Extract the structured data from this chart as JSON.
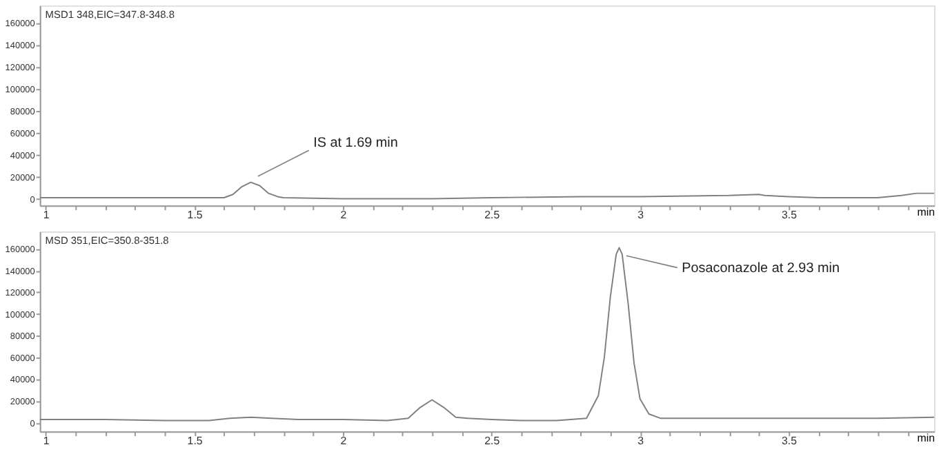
{
  "chart_data": [
    {
      "type": "line",
      "title": "MSD1 348,EIC=347.8-348.8",
      "xlabel": "min",
      "color": "#808080",
      "grid": false,
      "x": [
        0.98,
        1.2,
        1.4,
        1.55,
        1.6,
        1.63,
        1.66,
        1.69,
        1.72,
        1.75,
        1.78,
        1.8,
        2.0,
        2.3,
        2.5,
        2.8,
        3.0,
        3.3,
        3.4,
        3.42,
        3.5,
        3.6,
        3.8,
        3.88,
        3.93,
        3.99
      ],
      "values": [
        1000,
        1000,
        1000,
        1000,
        1000,
        4000,
        11000,
        15000,
        12000,
        5000,
        2000,
        1000,
        0,
        0,
        1000,
        2000,
        2000,
        3000,
        4000,
        3000,
        2000,
        1000,
        1000,
        3000,
        5000,
        5000
      ],
      "xlim": [
        0.98,
        3.99
      ],
      "ylim": [
        -6000,
        176000
      ],
      "xticks": [
        1,
        {
          "value": 1.1,
          "label": null
        },
        {
          "value": 1.2,
          "label": null
        },
        {
          "value": 1.3,
          "label": null
        },
        {
          "value": 1.4,
          "label": null
        },
        1.5,
        {
          "value": 1.6,
          "label": null
        },
        {
          "value": 1.7,
          "label": null
        },
        {
          "value": 1.8,
          "label": null
        },
        {
          "value": 1.9,
          "label": null
        },
        2,
        {
          "value": 2.1,
          "label": null
        },
        {
          "value": 2.2,
          "label": null
        },
        {
          "value": 2.3,
          "label": null
        },
        {
          "value": 2.4,
          "label": null
        },
        2.5,
        {
          "value": 2.6,
          "label": null
        },
        {
          "value": 2.7,
          "label": null
        },
        {
          "value": 2.8,
          "label": null
        },
        {
          "value": 2.9,
          "label": null
        },
        3,
        {
          "value": 3.1,
          "label": null
        },
        {
          "value": 3.2,
          "label": null
        },
        {
          "value": 3.3,
          "label": null
        },
        {
          "value": 3.4,
          "label": null
        },
        3.5,
        {
          "value": 3.6,
          "label": null
        },
        {
          "value": 3.7,
          "label": null
        },
        {
          "value": 3.8,
          "label": null
        },
        {
          "value": 3.9,
          "label": null
        }
      ],
      "yticks": [
        0,
        20000,
        40000,
        60000,
        80000,
        100000,
        120000,
        140000,
        160000
      ],
      "annotations": [
        {
          "text": "IS at 1.69 min",
          "x": 1.69,
          "y": 15000
        }
      ]
    },
    {
      "type": "line",
      "title": "MSD 351,EIC=350.8-351.8",
      "xlabel": "min",
      "color": "#808080",
      "grid": false,
      "x": [
        0.98,
        1.2,
        1.4,
        1.55,
        1.62,
        1.69,
        1.76,
        1.85,
        2.0,
        2.15,
        2.22,
        2.26,
        2.3,
        2.34,
        2.38,
        2.42,
        2.5,
        2.6,
        2.72,
        2.82,
        2.86,
        2.88,
        2.9,
        2.92,
        2.93,
        2.94,
        2.96,
        2.98,
        3.0,
        3.03,
        3.07,
        3.2,
        3.5,
        3.8,
        3.99
      ],
      "values": [
        3000,
        3000,
        2000,
        2000,
        4000,
        5000,
        4000,
        3000,
        3000,
        2000,
        4000,
        14000,
        21000,
        14000,
        5000,
        4000,
        3000,
        2000,
        2000,
        4000,
        25000,
        60000,
        115000,
        155000,
        161000,
        155000,
        110000,
        55000,
        22000,
        8000,
        4000,
        4000,
        4000,
        4000,
        5000
      ],
      "xlim": [
        0.98,
        3.99
      ],
      "ylim": [
        -8000,
        176000
      ],
      "xticks": [
        1,
        {
          "value": 1.1,
          "label": null
        },
        {
          "value": 1.2,
          "label": null
        },
        {
          "value": 1.3,
          "label": null
        },
        {
          "value": 1.4,
          "label": null
        },
        1.5,
        {
          "value": 1.6,
          "label": null
        },
        {
          "value": 1.7,
          "label": null
        },
        {
          "value": 1.8,
          "label": null
        },
        {
          "value": 1.9,
          "label": null
        },
        2,
        {
          "value": 2.1,
          "label": null
        },
        {
          "value": 2.2,
          "label": null
        },
        {
          "value": 2.3,
          "label": null
        },
        {
          "value": 2.4,
          "label": null
        },
        2.5,
        {
          "value": 2.6,
          "label": null
        },
        {
          "value": 2.7,
          "label": null
        },
        {
          "value": 2.8,
          "label": null
        },
        {
          "value": 2.9,
          "label": null
        },
        3,
        {
          "value": 3.1,
          "label": null
        },
        {
          "value": 3.2,
          "label": null
        },
        {
          "value": 3.3,
          "label": null
        },
        {
          "value": 3.4,
          "label": null
        },
        3.5,
        {
          "value": 3.6,
          "label": null
        },
        {
          "value": 3.7,
          "label": null
        },
        {
          "value": 3.8,
          "label": null
        },
        {
          "value": 3.9,
          "label": null
        }
      ],
      "yticks": [
        0,
        20000,
        40000,
        60000,
        80000,
        100000,
        120000,
        140000,
        160000
      ],
      "annotations": [
        {
          "text": "Posaconazole at 2.93 min",
          "x": 2.93,
          "y": 161000
        }
      ]
    }
  ]
}
